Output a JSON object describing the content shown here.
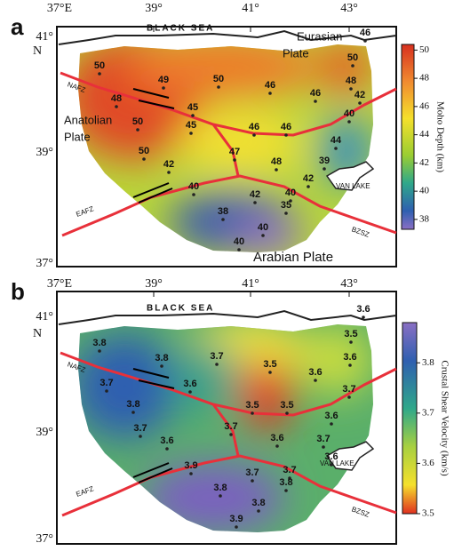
{
  "panels": [
    {
      "label": "a",
      "lon_ticks": [
        "37°E",
        "39°",
        "41°",
        "43°"
      ],
      "lat_ticks": [
        "41°",
        "N",
        "39°",
        "37°"
      ],
      "places": [
        "BLACK SEA",
        "Eurasian",
        "Plate",
        "Anatolian",
        "Plate",
        "Arabian Plate",
        "NAFZ",
        "EAFZ",
        "BZSZ",
        "VAN LAKE"
      ],
      "stations": [
        46,
        50,
        49,
        50,
        50,
        48,
        46,
        46,
        42,
        48,
        45,
        45,
        46,
        40,
        50,
        46,
        44,
        50,
        47,
        48,
        39,
        42,
        42,
        40,
        42,
        40,
        35,
        38,
        40,
        40
      ],
      "colorbar": {
        "title": "Moho Depth (km)",
        "lim": [
          37.3,
          50.4
        ],
        "ticks": [
          38,
          40,
          42,
          44,
          46,
          48,
          50
        ]
      }
    },
    {
      "label": "b",
      "lon_ticks": [
        "37°E",
        "39°",
        "41°",
        "43°"
      ],
      "lat_ticks": [
        "41°",
        "N",
        "39°",
        "37°"
      ],
      "places": [
        "BLACK SEA",
        "NAFZ",
        "EAFZ",
        "BZSZ",
        "VAN LAKE"
      ],
      "stations": [
        3.6,
        3.5,
        3.8,
        3.6,
        3.5,
        3.8,
        3.7,
        3.6,
        3.7,
        3.7,
        3.6,
        3.5,
        3.5,
        3.8,
        3.6,
        3.7,
        3.7,
        3.6,
        3.7,
        3.6,
        3.6,
        3.9,
        3.7,
        3.7,
        3.8,
        3.8,
        3.8,
        3.9
      ],
      "colorbar": {
        "title": "Crustal Shear Velocity (km/s)",
        "lim": [
          3.5,
          3.88
        ],
        "ticks": [
          3.5,
          3.6,
          3.7,
          3.8
        ]
      }
    }
  ]
}
